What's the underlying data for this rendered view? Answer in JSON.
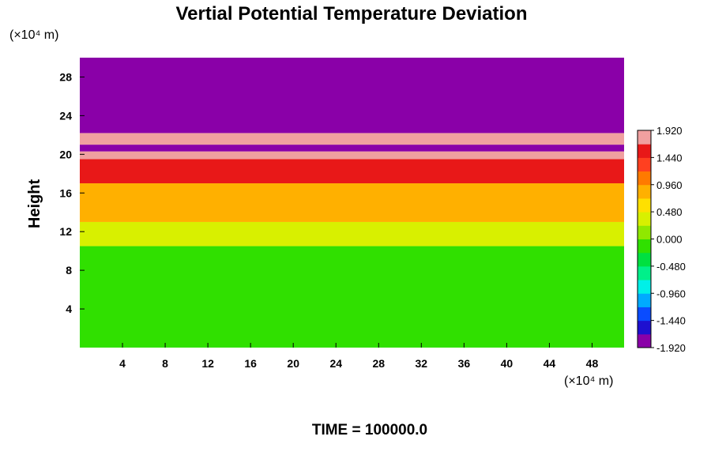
{
  "chart_data": {
    "type": "heatmap",
    "title": "Vertial Potential Temperature Deviation",
    "ylabel": "Height",
    "x_unit": "(×10⁴ m)",
    "y_unit": "(×10⁴ m)",
    "xlim": [
      0,
      51
    ],
    "ylim": [
      0,
      30
    ],
    "x_ticks": [
      "4",
      "8",
      "12",
      "16",
      "20",
      "24",
      "28",
      "32",
      "36",
      "40",
      "44",
      "48"
    ],
    "y_ticks": [
      "4",
      "8",
      "12",
      "16",
      "20",
      "24",
      "28"
    ],
    "colorbar": {
      "range": [
        -1.92,
        1.92
      ],
      "tick_labels": [
        "1.920",
        "1.440",
        "0.960",
        "0.480",
        "0.000",
        "-0.480",
        "-0.960",
        "-1.440",
        "-1.920"
      ],
      "colors": [
        "#8a00a8",
        "#1e10d0",
        "#0a4cff",
        "#00aaff",
        "#00f0e8",
        "#00f08a",
        "#00e040",
        "#30e000",
        "#90e800",
        "#d8f000",
        "#ffe000",
        "#ffb000",
        "#ff7a00",
        "#ff4020",
        "#e81818",
        "#f0a0a0"
      ]
    },
    "footer": "TIME = 100000.0",
    "bands": [
      {
        "y0": 0,
        "y1": 10.5,
        "value": -0.2
      },
      {
        "y0": 10.5,
        "y1": 13,
        "value": 0.25
      },
      {
        "y0": 13,
        "y1": 17,
        "value": 0.8
      },
      {
        "y0": 17,
        "y1": 19.5,
        "value": 1.5
      },
      {
        "y0": 19.5,
        "y1": 20.3,
        "value": 1.92
      },
      {
        "y0": 20.3,
        "y1": 21,
        "value": -1.92
      },
      {
        "y0": 21,
        "y1": 22.2,
        "value": 1.92
      },
      {
        "y0": 22.2,
        "y1": 30,
        "value": -1.92
      }
    ]
  }
}
